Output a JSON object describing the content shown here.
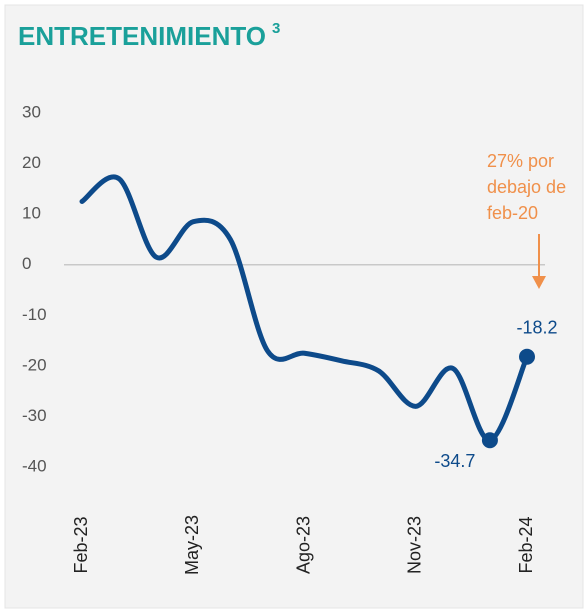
{
  "chart_data": {
    "type": "line",
    "title": "ENTRETENIMIENTO",
    "title_footnote": "3",
    "categories": [
      "Feb-23",
      null,
      null,
      "May-23",
      null,
      null,
      "Ago-23",
      null,
      null,
      "Nov-23",
      null,
      null,
      "Feb-24"
    ],
    "series": [
      {
        "color": "#0d4a8a",
        "values": [
          12.5,
          17,
          1.5,
          8.5,
          5,
          -17,
          -17.5,
          -19,
          -21,
          -28,
          -20.5,
          -34.7,
          -18.2
        ]
      }
    ],
    "marker_indices": [
      11,
      12
    ],
    "ylim": [
      -40,
      30
    ],
    "yticks": [
      -40,
      -30,
      -20,
      -10,
      0,
      10,
      20,
      30
    ],
    "zero_line": true,
    "annotation": {
      "lines": [
        "27% por",
        "debajo de",
        "feb-20"
      ],
      "color": "#f0904a"
    }
  }
}
